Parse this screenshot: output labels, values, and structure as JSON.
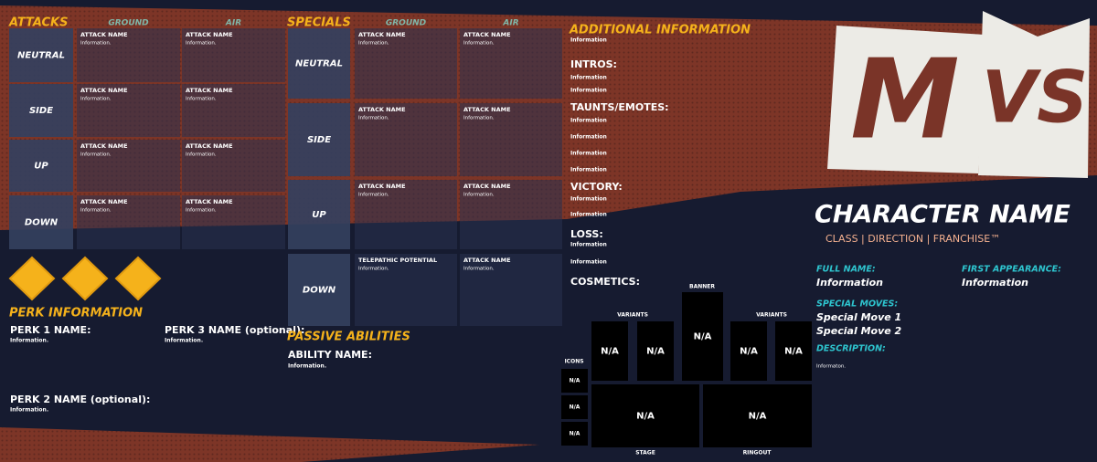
{
  "logo": [
    "M",
    "VS"
  ],
  "attacks": {
    "title": "ATTACKS",
    "columns": [
      "GROUND",
      "AIR"
    ],
    "rows": [
      {
        "label": "NEUTRAL",
        "cells": [
          {
            "name": "ATTACK NAME",
            "info": "Information."
          },
          {
            "name": "ATTACK NAME",
            "info": "Information."
          }
        ]
      },
      {
        "label": "SIDE",
        "cells": [
          {
            "name": "ATTACK NAME",
            "info": "Information."
          },
          {
            "name": "ATTACK NAME",
            "info": "Information."
          }
        ]
      },
      {
        "label": "UP",
        "cells": [
          {
            "name": "ATTACK NAME",
            "info": "Information."
          },
          {
            "name": "ATTACK NAME",
            "info": "Information."
          }
        ]
      },
      {
        "label": "DOWN",
        "cells": [
          {
            "name": "ATTACK NAME",
            "info": "Information."
          },
          {
            "name": "ATTACK NAME",
            "info": "Information."
          }
        ]
      }
    ]
  },
  "specials": {
    "title": "SPECIALS",
    "columns": [
      "GROUND",
      "AIR"
    ],
    "rows": [
      {
        "label": "NEUTRAL",
        "cells": [
          {
            "name": "ATTACK NAME",
            "info": "Information."
          },
          {
            "name": "ATTACK NAME",
            "info": "Information."
          }
        ]
      },
      {
        "label": "SIDE",
        "cells": [
          {
            "name": "ATTACK NAME",
            "info": "Information."
          },
          {
            "name": "ATTACK NAME",
            "info": "Information."
          }
        ]
      },
      {
        "label": "UP",
        "cells": [
          {
            "name": "ATTACK NAME",
            "info": "Information."
          },
          {
            "name": "ATTACK NAME",
            "info": "Information."
          }
        ]
      },
      {
        "label": "DOWN",
        "cells": [
          {
            "name": "TELEPATHIC POTENTIAL",
            "info": "Information."
          },
          {
            "name": "ATTACK NAME",
            "info": "Information."
          }
        ]
      }
    ]
  },
  "perks": {
    "title": "PERK INFORMATION",
    "items": [
      {
        "name": "PERK 1 NAME:",
        "info": "Information."
      },
      {
        "name": "PERK 3 NAME (optional):",
        "info": "Information."
      },
      {
        "name": "PERK 2 NAME (optional):",
        "info": "Information."
      }
    ]
  },
  "passive": {
    "title": "PASSIVE ABILITIES",
    "items": [
      {
        "name": "ABILITY NAME:",
        "info": "Information."
      }
    ]
  },
  "additional": {
    "title": "ADDITIONAL INFORMATION",
    "info": "Information",
    "sections": [
      {
        "heading": "INTROS:",
        "infos": [
          "Information",
          "Information"
        ]
      },
      {
        "heading": "TAUNTS/EMOTES:",
        "infos": [
          "Information",
          "Information",
          "Information",
          "Information"
        ]
      },
      {
        "heading": "VICTORY:",
        "infos": [
          "Information",
          "Information"
        ]
      },
      {
        "heading": "LOSS:",
        "infos": [
          "Information",
          "Information"
        ]
      },
      {
        "heading": "COSMETICS:",
        "infos": []
      }
    ]
  },
  "cosmetics": {
    "banner": {
      "label": "BANNER",
      "value": "N/A"
    },
    "variants_left": {
      "label": "VARIANTS",
      "items": [
        "N/A",
        "N/A"
      ]
    },
    "variants_right": {
      "label": "VARIANTS",
      "items": [
        "N/A",
        "N/A"
      ]
    },
    "icons": {
      "label": "ICONS",
      "items": [
        "N/A",
        "N/A",
        "N/A"
      ]
    },
    "stage": {
      "label": "STAGE",
      "value": "N/A"
    },
    "ringout": {
      "label": "RINGOUT",
      "value": "N/A"
    }
  },
  "character": {
    "name": "CHARACTER NAME",
    "subtitle": "CLASS | DIRECTION | FRANCHISE™",
    "full_name": {
      "label": "FULL NAME:",
      "value": "Information"
    },
    "first_appearance": {
      "label": "FIRST APPEARANCE:",
      "value": "Information"
    },
    "special_moves": {
      "label": "SPECIAL MOVES:",
      "values": [
        "Special Move 1",
        "Special Move 2"
      ]
    },
    "description": {
      "label": "DESCRIPTION:",
      "value": "Informaton."
    }
  }
}
